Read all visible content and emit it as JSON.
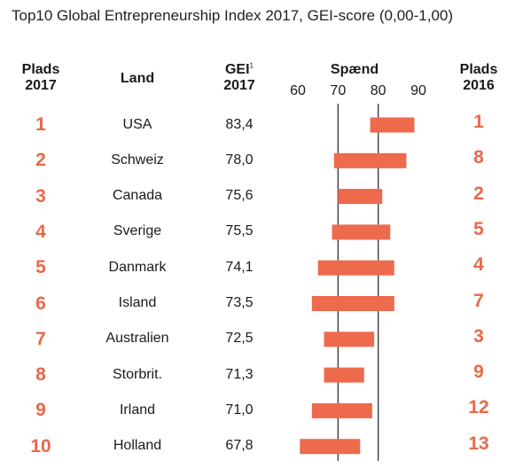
{
  "title": "Top10 Global Entrepreneurship Index 2017, GEI-score (0,00-1,00)",
  "headers": {
    "rank2017_line1": "Plads",
    "rank2017_line2": "2017",
    "land": "Land",
    "gei_line1": "GEI",
    "gei_sup": "1",
    "gei_line2": "2017",
    "span": "Spænd",
    "rank2016_line1": "Plads",
    "rank2016_line2": "2016"
  },
  "colors": {
    "bar": "#ee6a4d",
    "rank": "#e8694a",
    "grid": "#333333"
  },
  "chart_data": {
    "type": "bar",
    "title": "Top10 Global Entrepreneurship Index 2017, GEI-score (0,00-1,00)",
    "xlabel": "Spænd",
    "xlim": [
      60,
      90
    ],
    "xticks": [
      60,
      70,
      80,
      90
    ],
    "grid": true,
    "rows": [
      {
        "rank2017": "1",
        "land": "USA",
        "gei": "83,4",
        "span": [
          78,
          89
        ],
        "rank2016": "1"
      },
      {
        "rank2017": "2",
        "land": "Schweiz",
        "gei": "78,0",
        "span": [
          69,
          87
        ],
        "rank2016": "8"
      },
      {
        "rank2017": "3",
        "land": "Canada",
        "gei": "75,6",
        "span": [
          70,
          81
        ],
        "rank2016": "2"
      },
      {
        "rank2017": "4",
        "land": "Sverige",
        "gei": "75,5",
        "span": [
          68.5,
          83
        ],
        "rank2016": "5"
      },
      {
        "rank2017": "5",
        "land": "Danmark",
        "gei": "74,1",
        "span": [
          65,
          84
        ],
        "rank2016": "4"
      },
      {
        "rank2017": "6",
        "land": "Island",
        "gei": "73,5",
        "span": [
          63.5,
          84
        ],
        "rank2016": "7"
      },
      {
        "rank2017": "7",
        "land": "Australien",
        "gei": "72,5",
        "span": [
          66.5,
          79
        ],
        "rank2016": "3"
      },
      {
        "rank2017": "8",
        "land": "Storbrit.",
        "gei": "71,3",
        "span": [
          66.5,
          76.5
        ],
        "rank2016": "9"
      },
      {
        "rank2017": "9",
        "land": "Irland",
        "gei": "71,0",
        "span": [
          63.5,
          78.5
        ],
        "rank2016": "12"
      },
      {
        "rank2017": "10",
        "land": "Holland",
        "gei": "67,8",
        "span": [
          60.5,
          75.5
        ],
        "rank2016": "13"
      }
    ]
  }
}
